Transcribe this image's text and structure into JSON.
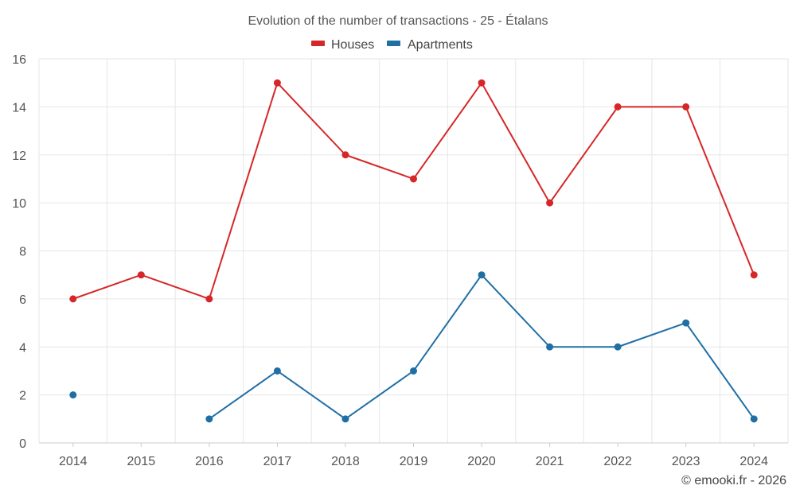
{
  "chart_data": {
    "type": "line",
    "title": "Evolution of the number of transactions - 25 - Étalans",
    "categories": [
      "2014",
      "2015",
      "2016",
      "2017",
      "2018",
      "2019",
      "2020",
      "2021",
      "2022",
      "2023",
      "2024"
    ],
    "series": [
      {
        "name": "Houses",
        "color": "#d62728",
        "values": [
          6,
          7,
          6,
          15,
          12,
          11,
          15,
          10,
          14,
          14,
          7
        ]
      },
      {
        "name": "Apartments",
        "color": "#1f6fa5",
        "values": [
          2,
          null,
          1,
          3,
          1,
          3,
          7,
          4,
          4,
          5,
          1
        ]
      }
    ],
    "yticks": [
      "0",
      "2",
      "4",
      "6",
      "8",
      "10",
      "12",
      "14",
      "16"
    ],
    "ylim": [
      0,
      16
    ],
    "xlabel": "",
    "ylabel": "",
    "legend_position": "top-center",
    "credit": "© emooki.fr - 2026"
  }
}
